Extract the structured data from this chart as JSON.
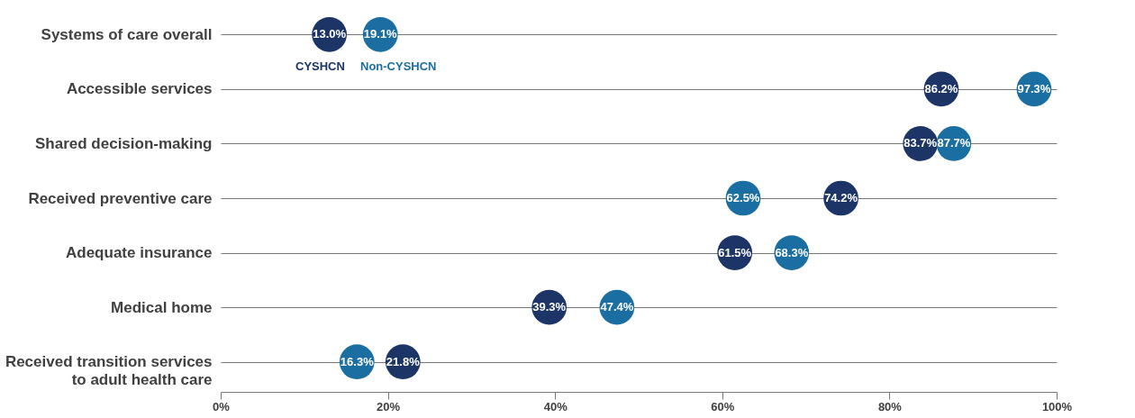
{
  "chart_data": {
    "type": "scatter",
    "orientation": "horizontal",
    "categories": [
      "Systems of care overall",
      "Accessible services",
      "Shared decision-making",
      "Received preventive care",
      "Adequate insurance",
      "Medical home",
      "Received transition services\nto adult health care"
    ],
    "series": [
      {
        "name": "CYSHCN",
        "color": "#1c3466",
        "values": [
          13.0,
          86.2,
          83.7,
          74.2,
          61.5,
          39.3,
          21.8
        ],
        "value_labels": [
          "13.0%",
          "86.2%",
          "83.7%",
          "74.2%",
          "61.5%",
          "39.3%",
          "21.8%"
        ]
      },
      {
        "name": "Non-CYSHCN",
        "color": "#1b6ea1",
        "values": [
          19.1,
          97.3,
          87.7,
          62.5,
          68.3,
          47.4,
          16.3
        ],
        "value_labels": [
          "19.1%",
          "97.3%",
          "87.7%",
          "62.5%",
          "68.3%",
          "47.4%",
          "16.3%"
        ]
      }
    ],
    "xlim": [
      0,
      100
    ],
    "xticks": [
      {
        "value": 0,
        "label": "0%"
      },
      {
        "value": 20,
        "label": "20%"
      },
      {
        "value": 40,
        "label": "40%"
      },
      {
        "value": 60,
        "label": "60%"
      },
      {
        "value": 80,
        "label": "80%"
      },
      {
        "value": 100,
        "label": "100%"
      }
    ],
    "grid": "y",
    "legend": "top left",
    "marker": "circle"
  }
}
